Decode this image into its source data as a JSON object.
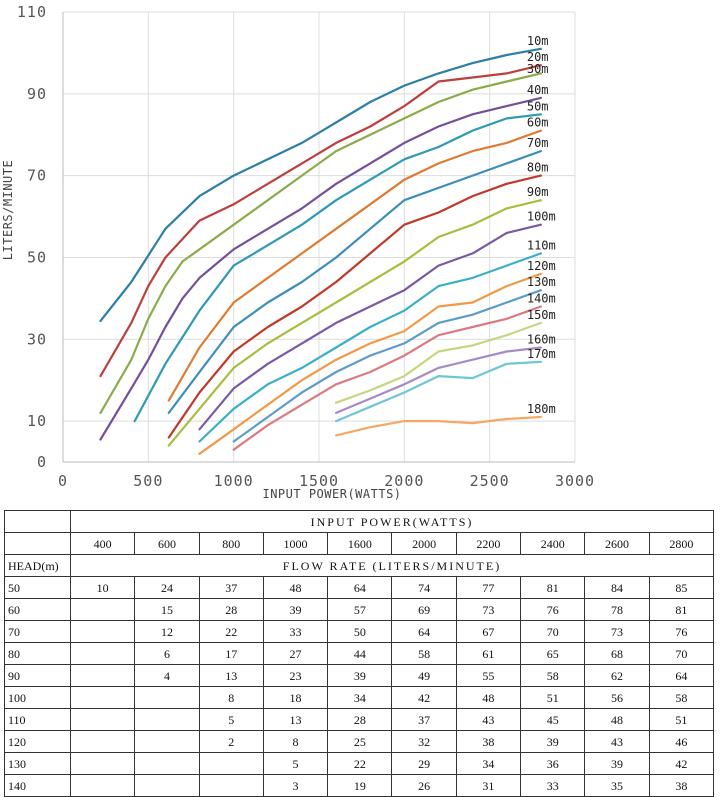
{
  "chart_data": {
    "type": "line",
    "title": "",
    "xlabel": "INPUT POWER(WATTS)",
    "ylabel": "LITERS/MINUTE",
    "xlim": [
      0,
      3000
    ],
    "ylim": [
      0,
      110
    ],
    "x_ticks": [
      "0",
      "500",
      "1000",
      "1500",
      "2000",
      "2500",
      "3000"
    ],
    "y_ticks": [
      "0",
      "10",
      "30",
      "50",
      "70",
      "90",
      "110"
    ],
    "grid": true,
    "series": [
      {
        "name": "10m",
        "color": "#2e7fa6",
        "points": [
          [
            220,
            34.5
          ],
          [
            400,
            44
          ],
          [
            600,
            57
          ],
          [
            800,
            65
          ],
          [
            1000,
            70
          ],
          [
            1200,
            74
          ],
          [
            1400,
            78
          ],
          [
            1600,
            83
          ],
          [
            1800,
            88
          ],
          [
            2000,
            92
          ],
          [
            2200,
            95
          ],
          [
            2400,
            97.5
          ],
          [
            2600,
            99.5
          ],
          [
            2800,
            101
          ]
        ]
      },
      {
        "name": "20m",
        "color": "#bd3f3d",
        "points": [
          [
            220,
            21
          ],
          [
            400,
            34
          ],
          [
            500,
            43
          ],
          [
            600,
            50
          ],
          [
            800,
            59
          ],
          [
            1000,
            63
          ],
          [
            1200,
            68
          ],
          [
            1400,
            73
          ],
          [
            1600,
            78
          ],
          [
            1800,
            82
          ],
          [
            2000,
            87
          ],
          [
            2100,
            90
          ],
          [
            2200,
            93
          ],
          [
            2400,
            94
          ],
          [
            2600,
            95
          ],
          [
            2800,
            97
          ]
        ]
      },
      {
        "name": "30m",
        "color": "#8cab4a",
        "points": [
          [
            220,
            12
          ],
          [
            400,
            25
          ],
          [
            500,
            35
          ],
          [
            600,
            43
          ],
          [
            700,
            49
          ],
          [
            800,
            52
          ],
          [
            1000,
            58
          ],
          [
            1200,
            64
          ],
          [
            1400,
            70
          ],
          [
            1600,
            76
          ],
          [
            1800,
            80
          ],
          [
            2000,
            84
          ],
          [
            2200,
            88
          ],
          [
            2400,
            91
          ],
          [
            2600,
            93
          ],
          [
            2800,
            95
          ]
        ]
      },
      {
        "name": "40m",
        "color": "#75509a",
        "points": [
          [
            220,
            5.5
          ],
          [
            400,
            18
          ],
          [
            500,
            25
          ],
          [
            600,
            33
          ],
          [
            700,
            40
          ],
          [
            800,
            45
          ],
          [
            1000,
            52
          ],
          [
            1200,
            57
          ],
          [
            1400,
            62
          ],
          [
            1600,
            68
          ],
          [
            1800,
            73
          ],
          [
            2000,
            78
          ],
          [
            2200,
            82
          ],
          [
            2400,
            85
          ],
          [
            2600,
            87
          ],
          [
            2800,
            89
          ]
        ]
      },
      {
        "name": "50m",
        "color": "#2e9ab3",
        "points": [
          [
            420,
            10
          ],
          [
            600,
            24
          ],
          [
            800,
            37
          ],
          [
            1000,
            48
          ],
          [
            1200,
            53
          ],
          [
            1400,
            58
          ],
          [
            1600,
            64
          ],
          [
            1800,
            69
          ],
          [
            2000,
            74
          ],
          [
            2200,
            77
          ],
          [
            2400,
            81
          ],
          [
            2600,
            84
          ],
          [
            2800,
            85
          ]
        ]
      },
      {
        "name": "60m",
        "color": "#e07a32",
        "points": [
          [
            620,
            15
          ],
          [
            800,
            28
          ],
          [
            1000,
            39
          ],
          [
            1200,
            45
          ],
          [
            1400,
            51
          ],
          [
            1600,
            57
          ],
          [
            1800,
            63
          ],
          [
            2000,
            69
          ],
          [
            2200,
            73
          ],
          [
            2400,
            76
          ],
          [
            2600,
            78
          ],
          [
            2800,
            81
          ]
        ]
      },
      {
        "name": "70m",
        "color": "#3c8dbd",
        "points": [
          [
            620,
            12
          ],
          [
            800,
            22
          ],
          [
            1000,
            33
          ],
          [
            1200,
            39
          ],
          [
            1400,
            44
          ],
          [
            1600,
            50
          ],
          [
            1800,
            57
          ],
          [
            2000,
            64
          ],
          [
            2200,
            67
          ],
          [
            2400,
            70
          ],
          [
            2600,
            73
          ],
          [
            2800,
            76
          ]
        ]
      },
      {
        "name": "80m",
        "color": "#c0392b",
        "points": [
          [
            620,
            6
          ],
          [
            800,
            17
          ],
          [
            1000,
            27
          ],
          [
            1200,
            33
          ],
          [
            1400,
            38
          ],
          [
            1600,
            44
          ],
          [
            1800,
            51
          ],
          [
            2000,
            58
          ],
          [
            2200,
            61
          ],
          [
            2400,
            65
          ],
          [
            2600,
            68
          ],
          [
            2800,
            70
          ]
        ]
      },
      {
        "name": "90m",
        "color": "#a5bf3f",
        "points": [
          [
            620,
            4
          ],
          [
            800,
            13
          ],
          [
            1000,
            23
          ],
          [
            1200,
            29
          ],
          [
            1400,
            34
          ],
          [
            1600,
            39
          ],
          [
            1800,
            44
          ],
          [
            2000,
            49
          ],
          [
            2200,
            55
          ],
          [
            2400,
            58
          ],
          [
            2600,
            62
          ],
          [
            2800,
            64
          ]
        ]
      },
      {
        "name": "100m",
        "color": "#7a5aa5",
        "points": [
          [
            800,
            8
          ],
          [
            1000,
            18
          ],
          [
            1200,
            24
          ],
          [
            1400,
            29
          ],
          [
            1600,
            34
          ],
          [
            1800,
            38
          ],
          [
            2000,
            42
          ],
          [
            2200,
            48
          ],
          [
            2400,
            51
          ],
          [
            2600,
            56
          ],
          [
            2800,
            58
          ]
        ]
      },
      {
        "name": "110m",
        "color": "#3ab0c8",
        "points": [
          [
            800,
            5
          ],
          [
            1000,
            13
          ],
          [
            1200,
            19
          ],
          [
            1400,
            23
          ],
          [
            1600,
            28
          ],
          [
            1800,
            33
          ],
          [
            2000,
            37
          ],
          [
            2200,
            43
          ],
          [
            2400,
            45
          ],
          [
            2600,
            48
          ],
          [
            2800,
            51
          ]
        ]
      },
      {
        "name": "120m",
        "color": "#f09a48",
        "points": [
          [
            800,
            2
          ],
          [
            1000,
            8
          ],
          [
            1200,
            14
          ],
          [
            1400,
            20
          ],
          [
            1600,
            25
          ],
          [
            1800,
            29
          ],
          [
            2000,
            32
          ],
          [
            2200,
            38
          ],
          [
            2400,
            39
          ],
          [
            2600,
            43
          ],
          [
            2800,
            46
          ]
        ]
      },
      {
        "name": "130m",
        "color": "#5d9cc9",
        "points": [
          [
            1000,
            5
          ],
          [
            1200,
            11
          ],
          [
            1400,
            17
          ],
          [
            1600,
            22
          ],
          [
            1800,
            26
          ],
          [
            2000,
            29
          ],
          [
            2200,
            34
          ],
          [
            2400,
            36
          ],
          [
            2600,
            39
          ],
          [
            2800,
            42
          ]
        ]
      },
      {
        "name": "140m",
        "color": "#db7a80",
        "points": [
          [
            1000,
            3
          ],
          [
            1200,
            9
          ],
          [
            1400,
            14
          ],
          [
            1600,
            19
          ],
          [
            1800,
            22
          ],
          [
            2000,
            26
          ],
          [
            2200,
            31
          ],
          [
            2400,
            33
          ],
          [
            2600,
            35
          ],
          [
            2800,
            38
          ]
        ]
      },
      {
        "name": "150m",
        "color": "#c6d67e",
        "points": [
          [
            1600,
            14.5
          ],
          [
            1800,
            17.5
          ],
          [
            2000,
            21
          ],
          [
            2200,
            27
          ],
          [
            2400,
            28.5
          ],
          [
            2600,
            31
          ],
          [
            2800,
            34
          ]
        ]
      },
      {
        "name": "160m",
        "color": "#a58dc4",
        "points": [
          [
            1600,
            12
          ],
          [
            1800,
            15.5
          ],
          [
            2000,
            19
          ],
          [
            2200,
            23
          ],
          [
            2400,
            25
          ],
          [
            2600,
            27
          ],
          [
            2800,
            28
          ]
        ]
      },
      {
        "name": "170m",
        "color": "#6ec6d6",
        "points": [
          [
            1600,
            10
          ],
          [
            1800,
            13.5
          ],
          [
            2000,
            17
          ],
          [
            2200,
            21
          ],
          [
            2400,
            20.5
          ],
          [
            2600,
            24
          ],
          [
            2800,
            24.5
          ]
        ]
      },
      {
        "name": "180m",
        "color": "#f5a866",
        "points": [
          [
            1600,
            6.5
          ],
          [
            1800,
            8.5
          ],
          [
            2000,
            10
          ],
          [
            2200,
            10
          ],
          [
            2400,
            9.5
          ],
          [
            2600,
            10.5
          ],
          [
            2800,
            11
          ]
        ]
      }
    ]
  },
  "table": {
    "header_top": "INPUT POWER(WATTS)",
    "watts": [
      "400",
      "600",
      "800",
      "1000",
      "1600",
      "2000",
      "2200",
      "2400",
      "2600",
      "2800"
    ],
    "head_label": "HEAD(m)",
    "flow_label": "FLOW RATE (LITERS/MINUTE)",
    "rows": [
      {
        "head": "50",
        "values": [
          "10",
          "24",
          "37",
          "48",
          "64",
          "74",
          "77",
          "81",
          "84",
          "85"
        ]
      },
      {
        "head": "60",
        "values": [
          "",
          "15",
          "28",
          "39",
          "57",
          "69",
          "73",
          "76",
          "78",
          "81"
        ]
      },
      {
        "head": "70",
        "values": [
          "",
          "12",
          "22",
          "33",
          "50",
          "64",
          "67",
          "70",
          "73",
          "76"
        ]
      },
      {
        "head": "80",
        "values": [
          "",
          "6",
          "17",
          "27",
          "44",
          "58",
          "61",
          "65",
          "68",
          "70"
        ]
      },
      {
        "head": "90",
        "values": [
          "",
          "4",
          "13",
          "23",
          "39",
          "49",
          "55",
          "58",
          "62",
          "64"
        ]
      },
      {
        "head": "100",
        "values": [
          "",
          "",
          "8",
          "18",
          "34",
          "42",
          "48",
          "51",
          "56",
          "58"
        ]
      },
      {
        "head": "110",
        "values": [
          "",
          "",
          "5",
          "13",
          "28",
          "37",
          "43",
          "45",
          "48",
          "51"
        ]
      },
      {
        "head": "120",
        "values": [
          "",
          "",
          "2",
          "8",
          "25",
          "32",
          "38",
          "39",
          "43",
          "46"
        ]
      },
      {
        "head": "130",
        "values": [
          "",
          "",
          "",
          "5",
          "22",
          "29",
          "34",
          "36",
          "39",
          "42"
        ]
      },
      {
        "head": "140",
        "values": [
          "",
          "",
          "",
          "3",
          "19",
          "26",
          "31",
          "33",
          "35",
          "38"
        ]
      }
    ]
  }
}
